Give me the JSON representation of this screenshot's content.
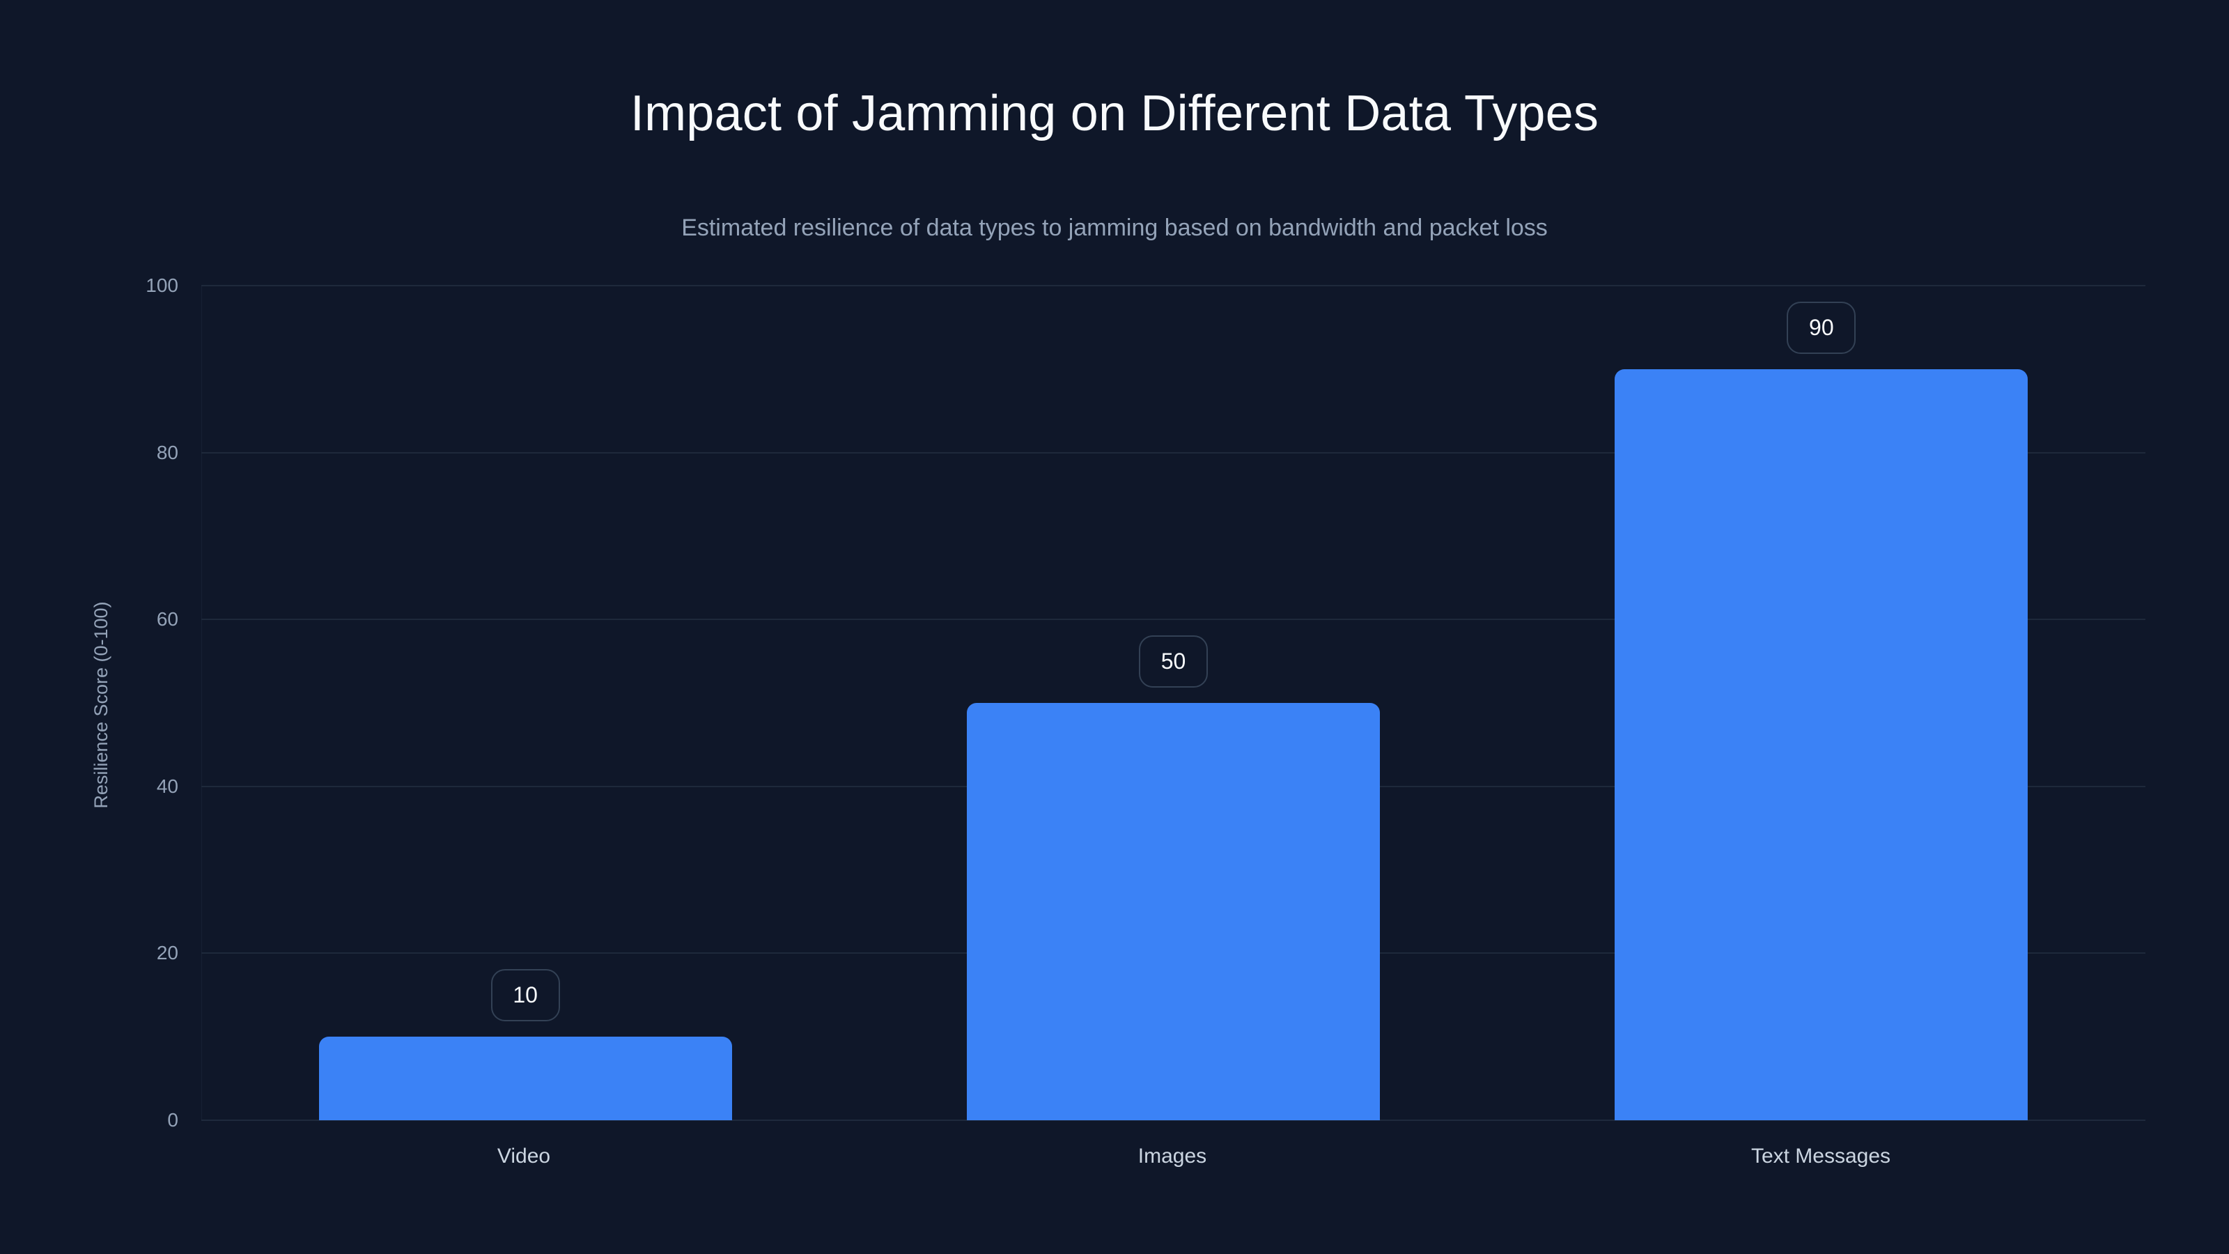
{
  "chart_data": {
    "type": "bar",
    "title": "Impact of Jamming on Different Data Types",
    "subtitle": "Estimated resilience of data types to jamming based on bandwidth and packet loss",
    "xlabel": "",
    "ylabel": "Resilience Score (0-100)",
    "categories": [
      "Video",
      "Images",
      "Text Messages"
    ],
    "values": [
      10,
      50,
      90
    ],
    "data_labels": [
      "10",
      "50",
      "90"
    ],
    "ylim": [
      0,
      100
    ],
    "yticks": [
      "0",
      "20",
      "40",
      "60",
      "80",
      "100"
    ],
    "grid": true,
    "legend": null,
    "bar_color": "#3b82f6"
  },
  "colors": {
    "background": "#0f1729",
    "bar": "#3b82f6",
    "gridline": "#1e293b",
    "title": "#f8fafc",
    "subtitle": "#94a3b8",
    "tick": "#94a3b8",
    "category_label": "#cbd5e1",
    "pill_border": "#334155"
  }
}
